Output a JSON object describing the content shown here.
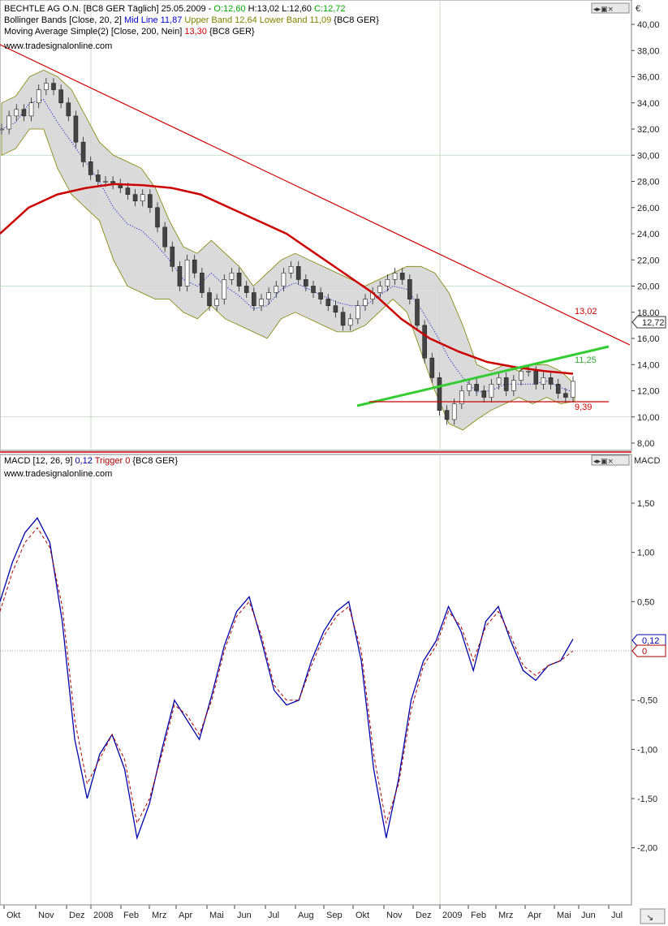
{
  "header": {
    "price_title": "BECHTLE AG O.N. [BC8 GER  Täglich] 25.05.2009 - ",
    "open": "O:12,60",
    "high_low": " H:13,02 L:12,60 ",
    "close": "C:12,72",
    "bb_prefix": "Bollinger Bands [Close, 20, 2] ",
    "bb_mid": "Mid Line 11,87",
    "bb_upper": " Upper Band 12,64",
    "bb_lower": " Lower Band 11,09",
    "bb_suffix": " {BC8 GER}",
    "ma_prefix": "Moving Average Simple(2) [Close, 200, Nein] ",
    "ma_value": "13,30",
    "ma_suffix": " {BC8 GER}",
    "website": "www.tradesignalonline.com",
    "macd_prefix": "MACD [12, 26, 9] ",
    "macd_value": "0,12",
    "macd_trigger": " Trigger 0",
    "macd_suffix": " {BC8 GER}",
    "website2": "www.tradesignalonline.com",
    "price_axis_unit": "€",
    "macd_axis_title": "MACD"
  },
  "colors": {
    "candle_up": "#ffffff",
    "candle_down": "#333333",
    "bb_fill": "#d4d4d4",
    "bb_line": "#808000",
    "mid_line": "#0000cc",
    "ma200": "#cc0000",
    "trend_red": "#cc0000",
    "trend_green": "#33cc33",
    "macd": "#0000aa",
    "trigger": "#aa0000",
    "grid": "#ccddcc"
  },
  "chart_data": [
    {
      "type": "candlestick",
      "title": "BECHTLE AG O.N.",
      "y_ticks": [
        "8,00",
        "10,00",
        "12,00",
        "14,00",
        "16,00",
        "18,00",
        "20,00",
        "22,00",
        "24,00",
        "26,00",
        "28,00",
        "30,00",
        "32,00",
        "34,00",
        "36,00",
        "38,00",
        "40,00"
      ],
      "ylim": [
        8,
        41
      ],
      "x_ticks": [
        "Okt",
        "Nov",
        "Dez",
        "2008",
        "Feb",
        "Mrz",
        "Apr",
        "Mai",
        "Jun",
        "Jul",
        "Aug",
        "Sep",
        "Okt",
        "Nov",
        "Dez",
        "2009",
        "Feb",
        "Mrz",
        "Apr",
        "Mai",
        "Jun",
        "Jul"
      ],
      "close_path_x": [
        0,
        3,
        6,
        9,
        12,
        15,
        18,
        20,
        22,
        24,
        26,
        28,
        31,
        34,
        37,
        40,
        43,
        46,
        49,
        52,
        55,
        58,
        61,
        64,
        67,
        70,
        73,
        76,
        79,
        82,
        85,
        87,
        90,
        93,
        96,
        99,
        100,
        102,
        105,
        108,
        110,
        113,
        116,
        119,
        122,
        125,
        127,
        130,
        133,
        136,
        139,
        142,
        145,
        148,
        151,
        154,
        157,
        160,
        163,
        166,
        169,
        172,
        175,
        178,
        181,
        184,
        187,
        190,
        193,
        196,
        199,
        202,
        205,
        208,
        211,
        214,
        217,
        220
      ],
      "close_path_y": [
        32.0,
        33.0,
        33.5,
        33.0,
        34.0,
        35.0,
        35.5,
        35.0,
        34.0,
        33.0,
        31.0,
        29.5,
        28.5,
        28.0,
        28.0,
        27.8,
        27.5,
        27.0,
        26.5,
        27.0,
        26.0,
        24.5,
        23.0,
        21.5,
        20.0,
        22.0,
        21.0,
        19.5,
        18.5,
        19.0,
        20.5,
        21.0,
        20.0,
        19.5,
        18.5,
        19.0,
        19.5,
        20.0,
        21.0,
        21.5,
        20.5,
        20.0,
        19.5,
        19.0,
        18.5,
        18.0,
        17.0,
        17.5,
        18.5,
        19.0,
        19.5,
        20.0,
        20.5,
        21.0,
        20.5,
        19.0,
        17.0,
        14.5,
        13.0,
        10.5,
        9.8,
        11.0,
        12.0,
        12.5,
        12.0,
        11.5,
        12.5,
        13.0,
        12.0,
        12.8,
        13.5,
        13.5,
        12.5,
        13.0,
        12.5,
        11.8,
        11.5,
        12.72
      ],
      "bollinger_upper": [
        34.0,
        34.5,
        36.0,
        36.5,
        36.0,
        35.0,
        33.0,
        31.0,
        30.0,
        29.5,
        29.0,
        27.5,
        25.0,
        23.0,
        22.5,
        23.5,
        22.5,
        21.5,
        20.0,
        21.0,
        22.0,
        22.5,
        22.0,
        21.5,
        21.0,
        20.5,
        20.0,
        20.5,
        21.0,
        21.5,
        21.5,
        21.0,
        19.5,
        17.0,
        14.0,
        13.5,
        14.0,
        13.5,
        14.0,
        14.0,
        13.5,
        12.5
      ],
      "bollinger_lower": [
        30.0,
        30.5,
        32.0,
        32.0,
        29.0,
        27.0,
        26.0,
        25.0,
        22.0,
        20.0,
        19.5,
        19.0,
        19.0,
        18.0,
        17.5,
        18.5,
        17.5,
        17.0,
        16.5,
        16.0,
        17.5,
        18.0,
        17.5,
        17.0,
        16.5,
        16.5,
        17.0,
        18.0,
        19.0,
        18.0,
        15.0,
        12.0,
        9.5,
        9.0,
        9.8,
        10.5,
        11.0,
        11.5,
        11.0,
        11.5,
        11.0,
        11.2
      ],
      "ma200": [
        24.0,
        26.0,
        27.0,
        27.5,
        27.8,
        27.7,
        27.5,
        27.0,
        26.0,
        25.0,
        24.0,
        22.5,
        21.0,
        19.5,
        17.5,
        16.0,
        15.0,
        14.2,
        13.8,
        13.5,
        13.3
      ],
      "annotations": {
        "resistance": "13,02",
        "support": "11,25",
        "low": "9,39"
      },
      "last_value": "12,72"
    },
    {
      "type": "line",
      "title": "MACD [12, 26, 9]",
      "y_ticks": [
        "-2,00",
        "-1,50",
        "-1,00",
        "-0,50",
        "0,50",
        "1,00",
        "1,50"
      ],
      "ylim": [
        -2.6,
        1.95
      ],
      "series": [
        {
          "name": "MACD",
          "values": [
            0.5,
            0.9,
            1.2,
            1.35,
            1.1,
            0.3,
            -0.9,
            -1.5,
            -1.05,
            -0.85,
            -1.2,
            -1.9,
            -1.55,
            -1.0,
            -0.5,
            -0.7,
            -0.9,
            -0.45,
            0.05,
            0.4,
            0.55,
            0.1,
            -0.4,
            -0.55,
            -0.5,
            -0.1,
            0.2,
            0.4,
            0.5,
            -0.1,
            -1.2,
            -1.9,
            -1.3,
            -0.5,
            -0.1,
            0.1,
            0.45,
            0.2,
            -0.2,
            0.3,
            0.45,
            0.1,
            -0.2,
            -0.3,
            -0.15,
            -0.1,
            0.12
          ]
        },
        {
          "name": "Trigger",
          "values": [
            0.4,
            0.8,
            1.1,
            1.25,
            1.05,
            0.45,
            -0.7,
            -1.35,
            -1.1,
            -0.85,
            -1.1,
            -1.75,
            -1.5,
            -1.05,
            -0.55,
            -0.65,
            -0.85,
            -0.5,
            0.0,
            0.35,
            0.5,
            0.15,
            -0.35,
            -0.5,
            -0.5,
            -0.15,
            0.15,
            0.35,
            0.45,
            0.0,
            -1.05,
            -1.75,
            -1.35,
            -0.6,
            -0.15,
            0.05,
            0.4,
            0.25,
            -0.1,
            0.25,
            0.4,
            0.15,
            -0.15,
            -0.25,
            -0.15,
            -0.1,
            0.0
          ]
        }
      ],
      "last_values": [
        "0,12",
        "0"
      ]
    }
  ]
}
